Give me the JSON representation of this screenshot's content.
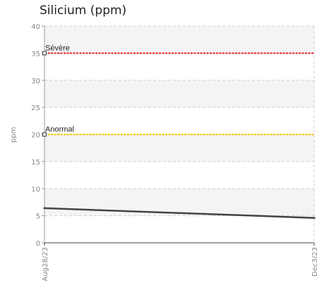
{
  "chart_data": {
    "type": "line",
    "title": "Silicium (ppm)",
    "ylabel": "ppm",
    "xlabel": "",
    "ylim": [
      0,
      40
    ],
    "yticks": [
      0,
      5,
      10,
      15,
      20,
      25,
      30,
      35,
      40
    ],
    "x_tick_labels": [
      "Aug28/23",
      "Dec3/23"
    ],
    "grid": true,
    "series": [
      {
        "values": [
          6.4,
          4.6
        ],
        "color": "#444444"
      }
    ],
    "thresholds": [
      {
        "label": "Sévère",
        "value": 35,
        "color": "#e8202a"
      },
      {
        "label": "Anormal",
        "value": 20,
        "color": "#f0c800"
      }
    ]
  }
}
